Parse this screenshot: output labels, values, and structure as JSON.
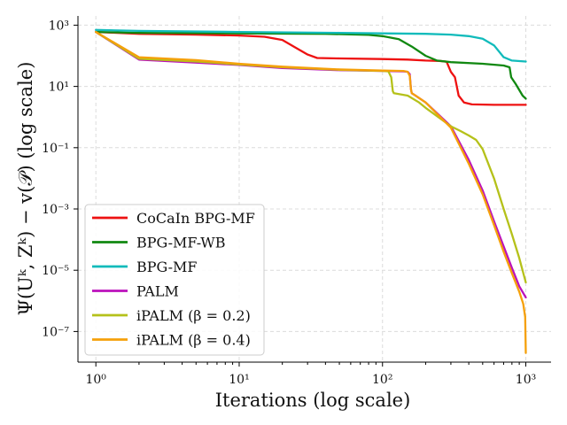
{
  "chart_data": {
    "type": "line",
    "x_scale": "log",
    "y_scale": "log",
    "xlim": [
      0.75,
      1500
    ],
    "ylim": [
      1e-08,
      2000
    ],
    "grid": true,
    "legend_position": "lower-left",
    "xlabel": "Iterations (log scale)",
    "ylabel": "Ψ(Uᵏ, Zᵏ) − v(𝒫) (log scale)",
    "x_ticks": [
      {
        "value": 1,
        "label": "10⁰"
      },
      {
        "value": 10,
        "label": "10¹"
      },
      {
        "value": 100,
        "label": "10²"
      },
      {
        "value": 1000,
        "label": "10³"
      }
    ],
    "y_ticks": [
      {
        "value": 1000,
        "label": "10³"
      },
      {
        "value": 10,
        "label": "10¹"
      },
      {
        "value": 0.1,
        "label": "10⁻¹"
      },
      {
        "value": 0.001,
        "label": "10⁻³"
      },
      {
        "value": 1e-05,
        "label": "10⁻⁵"
      },
      {
        "value": 1e-07,
        "label": "10⁻⁷"
      }
    ],
    "series": [
      {
        "name": "CoCaIn BPG-MF",
        "color": "#ee1111",
        "points": [
          [
            1,
            600
          ],
          [
            2,
            520
          ],
          [
            5,
            490
          ],
          [
            10,
            460
          ],
          [
            15,
            420
          ],
          [
            20,
            330
          ],
          [
            25,
            180
          ],
          [
            30,
            110
          ],
          [
            35,
            85
          ],
          [
            50,
            82
          ],
          [
            100,
            78
          ],
          [
            150,
            75
          ],
          [
            200,
            70
          ],
          [
            250,
            68
          ],
          [
            280,
            64
          ],
          [
            300,
            30
          ],
          [
            320,
            20
          ],
          [
            340,
            5
          ],
          [
            370,
            3
          ],
          [
            420,
            2.6
          ],
          [
            600,
            2.5
          ],
          [
            1000,
            2.5
          ]
        ]
      },
      {
        "name": "BPG-MF-WB",
        "color": "#118811",
        "points": [
          [
            1,
            600
          ],
          [
            2,
            560
          ],
          [
            10,
            540
          ],
          [
            40,
            520
          ],
          [
            80,
            480
          ],
          [
            100,
            440
          ],
          [
            130,
            350
          ],
          [
            160,
            200
          ],
          [
            200,
            100
          ],
          [
            240,
            70
          ],
          [
            300,
            62
          ],
          [
            500,
            55
          ],
          [
            700,
            48
          ],
          [
            770,
            42
          ],
          [
            790,
            20
          ],
          [
            850,
            12
          ],
          [
            950,
            5
          ],
          [
            1000,
            4
          ]
        ]
      },
      {
        "name": "BPG-MF",
        "color": "#11bbbb",
        "points": [
          [
            1,
            700
          ],
          [
            2,
            650
          ],
          [
            10,
            600
          ],
          [
            50,
            560
          ],
          [
            100,
            540
          ],
          [
            200,
            520
          ],
          [
            300,
            490
          ],
          [
            400,
            440
          ],
          [
            500,
            360
          ],
          [
            600,
            220
          ],
          [
            700,
            90
          ],
          [
            800,
            70
          ],
          [
            1000,
            65
          ]
        ]
      },
      {
        "name": "PALM",
        "color": "#bb11bb",
        "points": [
          [
            1,
            600
          ],
          [
            2,
            75
          ],
          [
            5,
            60
          ],
          [
            10,
            50
          ],
          [
            20,
            40
          ],
          [
            50,
            34
          ],
          [
            100,
            32
          ],
          [
            140,
            31
          ],
          [
            150,
            30
          ],
          [
            155,
            25
          ],
          [
            158,
            8
          ],
          [
            160,
            6
          ],
          [
            165,
            5.5
          ],
          [
            200,
            3
          ],
          [
            300,
            0.5
          ],
          [
            400,
            0.04
          ],
          [
            500,
            0.004
          ],
          [
            600,
            0.0004
          ],
          [
            700,
            6e-05
          ],
          [
            800,
            1.2e-05
          ],
          [
            900,
            3e-06
          ],
          [
            1000,
            1.3e-06
          ]
        ]
      },
      {
        "name": "iPALM (β = 0.2)",
        "color": "#b5c11a",
        "points": [
          [
            1,
            600
          ],
          [
            2,
            80
          ],
          [
            5,
            65
          ],
          [
            10,
            52
          ],
          [
            20,
            42
          ],
          [
            50,
            35
          ],
          [
            100,
            32
          ],
          [
            110,
            31
          ],
          [
            115,
            20
          ],
          [
            118,
            7
          ],
          [
            120,
            6
          ],
          [
            150,
            5
          ],
          [
            180,
            3
          ],
          [
            200,
            2
          ],
          [
            300,
            0.5
          ],
          [
            350,
            0.35
          ],
          [
            400,
            0.25
          ],
          [
            450,
            0.18
          ],
          [
            500,
            0.09
          ],
          [
            600,
            0.01
          ],
          [
            700,
            0.001
          ],
          [
            800,
            0.00015
          ],
          [
            900,
            2.5e-05
          ],
          [
            1000,
            4e-06
          ]
        ]
      },
      {
        "name": "iPALM (β = 0.4)",
        "color": "#f5a00a",
        "points": [
          [
            1,
            600
          ],
          [
            2,
            90
          ],
          [
            5,
            72
          ],
          [
            10,
            55
          ],
          [
            20,
            44
          ],
          [
            50,
            36
          ],
          [
            100,
            33
          ],
          [
            140,
            32
          ],
          [
            150,
            30
          ],
          [
            155,
            22
          ],
          [
            158,
            8
          ],
          [
            160,
            6
          ],
          [
            165,
            5.5
          ],
          [
            200,
            3
          ],
          [
            300,
            0.45
          ],
          [
            400,
            0.03
          ],
          [
            500,
            0.003
          ],
          [
            600,
            0.0003
          ],
          [
            700,
            4e-05
          ],
          [
            800,
            8e-06
          ],
          [
            900,
            2e-06
          ],
          [
            960,
            8e-07
          ],
          [
            990,
            3e-07
          ],
          [
            1000,
            2e-08
          ]
        ]
      }
    ]
  }
}
